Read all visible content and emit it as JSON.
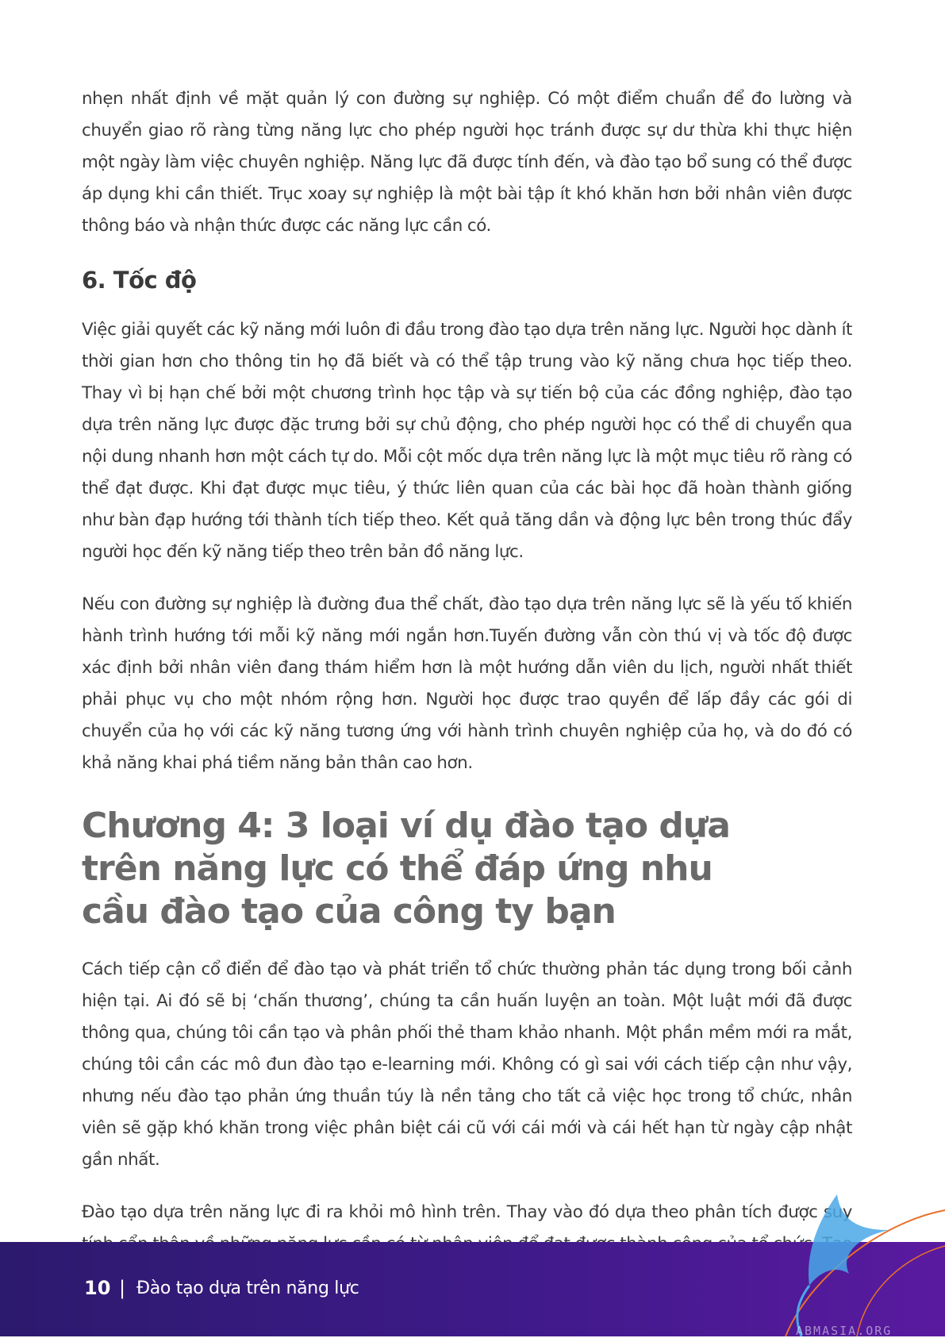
{
  "paragraphs_top": [
    "nhẹn nhất định về mặt quản lý con đường sự nghiệp. Có một điểm chuẩn để đo lường và chuyển giao rõ ràng từng năng lực cho phép người học tránh được sự dư thừa khi thực hiện một ngày làm việc chuyên nghiệp. Năng lực đã được tính đến, và đào tạo bổ sung có thể được áp dụng khi cần thiết. Trục xoay sự nghiệp là một bài tập ít khó khăn hơn bởi nhân viên được thông báo và nhận thức được các năng lực cần có."
  ],
  "section6": {
    "heading": "6. Tốc độ",
    "paragraphs": [
      "Việc giải quyết các kỹ năng mới luôn đi đầu trong đào tạo dựa trên năng lực. Người học dành ít thời gian hơn cho thông tin họ đã biết và có thể tập trung vào kỹ năng chưa học tiếp theo. Thay vì bị hạn chế bởi một chương trình học tập và sự tiến bộ của các đồng nghiệp, đào tạo dựa trên năng lực được đặc trưng bởi sự chủ động, cho phép người học có thể di chuyển qua nội dung nhanh hơn một cách tự do. Mỗi cột mốc dựa trên năng lực là một mục tiêu rõ ràng có thể đạt được. Khi đạt được mục tiêu, ý thức liên quan của các bài học đã hoàn thành giống như bàn đạp hướng tới thành tích tiếp theo. Kết quả tăng dần và động lực bên trong thúc đẩy người học đến kỹ năng tiếp theo trên bản đồ năng lực.",
      "Nếu con đường sự nghiệp là đường đua thể chất, đào tạo dựa trên năng lực sẽ là yếu tố khiến hành trình hướng tới mỗi kỹ năng mới ngắn hơn.Tuyến đường vẫn còn thú vị và tốc độ được xác định bởi nhân viên đang thám hiểm hơn là một hướng dẫn viên du lịch, người nhất thiết phải phục vụ cho một nhóm rộng hơn. Người học được trao quyền để lấp đầy các gói di chuyển của họ với các kỹ năng tương ứng với hành trình chuyên nghiệp của họ, và do đó có khả năng khai phá tiềm năng bản thân cao hơn."
    ]
  },
  "chapter4": {
    "heading": "Chương 4: 3 loại ví dụ đào tạo dựa trên năng lực có thể đáp ứng nhu cầu đào tạo của công ty bạn",
    "paragraphs": [
      "Cách tiếp cận cổ điển để đào tạo và phát triển tổ chức thường phản tác dụng trong bối cảnh hiện tại. Ai đó sẽ bị ‘chấn thương’, chúng ta cần huấn luyện an toàn. Một luật mới đã được thông qua, chúng tôi cần tạo và phân phối thẻ tham khảo nhanh. Một phần mềm mới ra mắt, chúng tôi cần các mô đun đào tạo e-learning mới. Không có gì sai với cách tiếp cận như vậy, nhưng nếu đào tạo phản ứng thuần túy là nền tảng cho tất cả việc học trong tổ chức, nhân viên sẽ gặp khó khăn trong việc phân biệt cái cũ với cái mới và cái hết hạn từ ngày cập nhật gần nhất.",
      "Đào tạo dựa trên năng lực đi ra khỏi mô hình trên. Thay vào đó dựa theo phân tích được suy tính cẩn thận về những năng lực cần có từ nhân viên để đạt được thành công của tổ chức. Tạo một"
    ]
  },
  "footer": {
    "page_number": "10",
    "separator": "|",
    "title": "Đào tạo dựa trên năng lực",
    "bg_start": "#2c1a6e",
    "bg_end": "#5a1aa0",
    "accent": "#e8702a",
    "logo_color": "#4aa8e8"
  },
  "watermark": "ABMASIA.ORG"
}
